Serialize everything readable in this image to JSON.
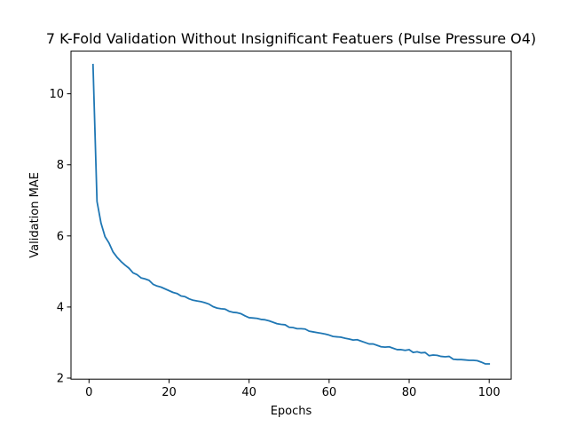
{
  "chart_data": {
    "type": "line",
    "title": "7 K-Fold Validation Without Insignificant Featuers (Pulse Pressure O4)",
    "xlabel": "Epochs",
    "ylabel": "Validation MAE",
    "xlim": [
      -4.5,
      105.5
    ],
    "ylim": [
      1.97,
      11.2
    ],
    "xticks": [
      0,
      20,
      40,
      60,
      80,
      100
    ],
    "yticks": [
      2,
      4,
      6,
      8,
      10
    ],
    "grid": false,
    "line_color": "#1f77b4",
    "series": [
      {
        "x": [
          1,
          2,
          3,
          4,
          5,
          6,
          7,
          8,
          9,
          10,
          11,
          12,
          13,
          14,
          15,
          16,
          17,
          18,
          19,
          20,
          21,
          22,
          23,
          24,
          25,
          26,
          27,
          28,
          29,
          30,
          31,
          32,
          33,
          34,
          35,
          36,
          37,
          38,
          39,
          40,
          41,
          42,
          43,
          44,
          45,
          46,
          47,
          48,
          49,
          50,
          51,
          52,
          53,
          54,
          55,
          56,
          57,
          58,
          59,
          60,
          61,
          62,
          63,
          64,
          65,
          66,
          67,
          68,
          69,
          70,
          71,
          72,
          73,
          74,
          75,
          76,
          77,
          78,
          79,
          80,
          81,
          82,
          83,
          84,
          85,
          86,
          87,
          88,
          89,
          90,
          91,
          92,
          93,
          94,
          95,
          96,
          97,
          98,
          99,
          100
        ],
        "values": [
          10.82,
          6.97,
          6.36,
          5.98,
          5.8,
          5.55,
          5.4,
          5.28,
          5.18,
          5.09,
          4.96,
          4.91,
          4.82,
          4.79,
          4.75,
          4.64,
          4.59,
          4.56,
          4.51,
          4.46,
          4.41,
          4.38,
          4.31,
          4.29,
          4.23,
          4.19,
          4.17,
          4.15,
          4.12,
          4.08,
          4.01,
          3.97,
          3.95,
          3.94,
          3.88,
          3.85,
          3.84,
          3.81,
          3.75,
          3.7,
          3.69,
          3.68,
          3.65,
          3.64,
          3.61,
          3.57,
          3.53,
          3.51,
          3.5,
          3.43,
          3.42,
          3.39,
          3.39,
          3.38,
          3.32,
          3.3,
          3.28,
          3.26,
          3.24,
          3.21,
          3.17,
          3.16,
          3.15,
          3.12,
          3.1,
          3.07,
          3.08,
          3.04,
          3.0,
          2.96,
          2.96,
          2.92,
          2.88,
          2.87,
          2.88,
          2.84,
          2.8,
          2.8,
          2.78,
          2.8,
          2.72,
          2.74,
          2.71,
          2.72,
          2.63,
          2.65,
          2.64,
          2.61,
          2.6,
          2.61,
          2.53,
          2.52,
          2.52,
          2.51,
          2.5,
          2.5,
          2.49,
          2.45,
          2.4,
          2.4
        ]
      }
    ]
  }
}
